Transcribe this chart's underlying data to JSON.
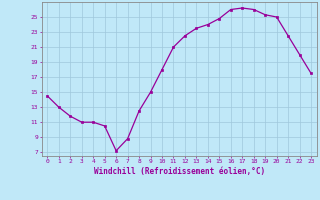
{
  "x": [
    0,
    1,
    2,
    3,
    4,
    5,
    6,
    7,
    8,
    9,
    10,
    11,
    12,
    13,
    14,
    15,
    16,
    17,
    18,
    19,
    20,
    21,
    22,
    23
  ],
  "y": [
    14.5,
    13.0,
    11.8,
    11.0,
    11.0,
    10.5,
    7.2,
    8.8,
    12.5,
    15.0,
    18.0,
    21.0,
    22.5,
    23.5,
    24.0,
    24.8,
    26.0,
    26.2,
    26.0,
    25.3,
    25.0,
    22.5,
    20.0,
    17.5
  ],
  "xlabel": "Windchill (Refroidissement éolien,°C)",
  "yticks": [
    7,
    9,
    11,
    13,
    15,
    17,
    19,
    21,
    23,
    25
  ],
  "xticks": [
    0,
    1,
    2,
    3,
    4,
    5,
    6,
    7,
    8,
    9,
    10,
    11,
    12,
    13,
    14,
    15,
    16,
    17,
    18,
    19,
    20,
    21,
    22,
    23
  ],
  "line_color": "#990099",
  "marker_color": "#990099",
  "bg_color": "#c0e8f8",
  "grid_color": "#a0c8dc",
  "border_color": "#888888",
  "ylim": [
    6.5,
    27.0
  ],
  "xlim": [
    -0.5,
    23.5
  ]
}
